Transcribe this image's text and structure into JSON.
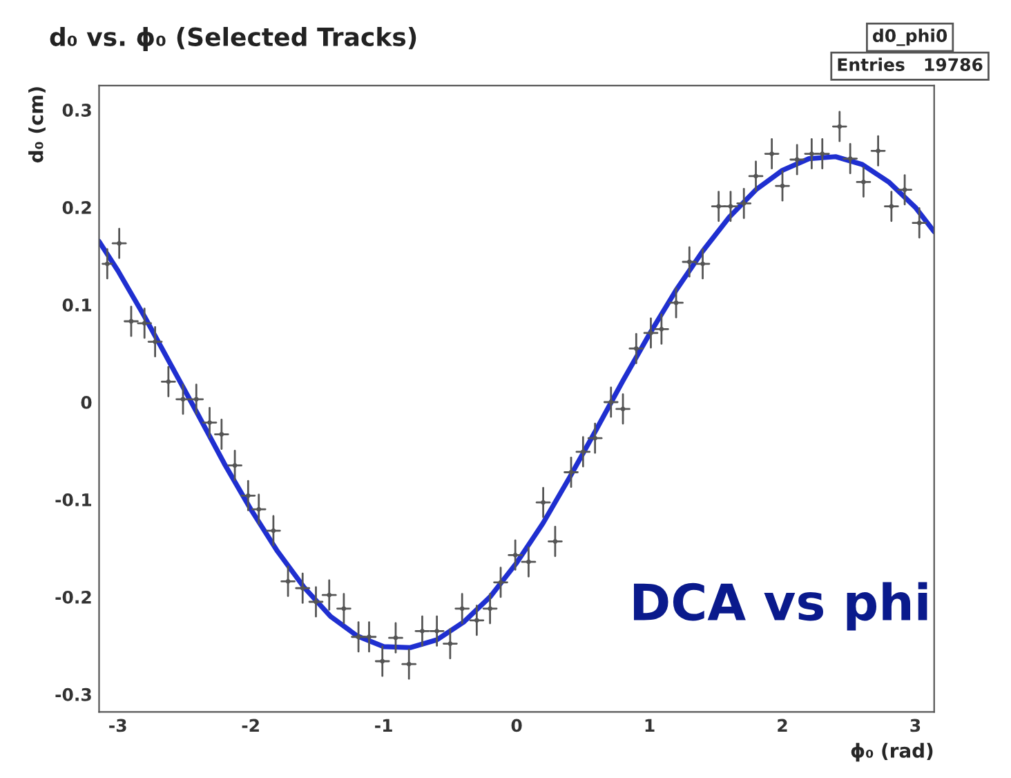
{
  "chart_data": {
    "type": "scatter",
    "title": "d₀ vs. ϕ₀ (Selected Tracks)",
    "xlabel": "ϕ₀ (rad)",
    "ylabel": "d₀ (cm)",
    "annotations": [
      "d0_phi0",
      "Entries   19786",
      "DCA vs phi"
    ],
    "xlim": [
      -3.1416,
      3.1416
    ],
    "xticks": [
      -3,
      -2,
      -1,
      0,
      1,
      2,
      3
    ],
    "ylim": [
      -0.318,
      0.325
    ],
    "yticks": [
      -0.3,
      -0.2,
      -0.1,
      0,
      0.1,
      0.2,
      0.3
    ],
    "grid": false,
    "legend": false,
    "series": [
      {
        "color": "#555555",
        "x": [
          -3.08,
          -2.99,
          -2.9,
          -2.8,
          -2.72,
          -2.62,
          -2.51,
          -2.41,
          -2.31,
          -2.22,
          -2.12,
          -2.02,
          -1.94,
          -1.83,
          -1.72,
          -1.61,
          -1.51,
          -1.41,
          -1.3,
          -1.19,
          -1.11,
          -1.01,
          -0.91,
          -0.81,
          -0.71,
          -0.6,
          -0.5,
          -0.41,
          -0.3,
          -0.2,
          -0.12,
          -0.01,
          0.09,
          0.2,
          0.29,
          0.41,
          0.5,
          0.59,
          0.71,
          0.8,
          0.9,
          1.01,
          1.09,
          1.2,
          1.3,
          1.4,
          1.52,
          1.61,
          1.71,
          1.8,
          1.92,
          2.0,
          2.11,
          2.22,
          2.3,
          2.43,
          2.51,
          2.61,
          2.72,
          2.82,
          2.92,
          3.03
        ],
        "values": [
          0.142,
          0.163,
          0.083,
          0.081,
          0.062,
          0.021,
          0.003,
          0.003,
          -0.021,
          -0.033,
          -0.065,
          -0.096,
          -0.11,
          -0.132,
          -0.184,
          -0.191,
          -0.205,
          -0.198,
          -0.212,
          -0.241,
          -0.241,
          -0.266,
          -0.242,
          -0.269,
          -0.235,
          -0.235,
          -0.248,
          -0.212,
          -0.224,
          -0.212,
          -0.185,
          -0.157,
          -0.164,
          -0.103,
          -0.143,
          -0.072,
          -0.051,
          -0.037,
          0.0,
          -0.007,
          0.055,
          0.071,
          0.075,
          0.102,
          0.144,
          0.142,
          0.201,
          0.201,
          0.204,
          0.232,
          0.255,
          0.222,
          0.249,
          0.255,
          0.255,
          0.283,
          0.25,
          0.226,
          0.258,
          0.201,
          0.218,
          0.184
        ],
        "errors": [
          0.015,
          0.015,
          0.015,
          0.015,
          0.015,
          0.015,
          0.015,
          0.015,
          0.015,
          0.015,
          0.015,
          0.015,
          0.015,
          0.015,
          0.015,
          0.015,
          0.015,
          0.015,
          0.015,
          0.015,
          0.015,
          0.015,
          0.015,
          0.015,
          0.015,
          0.015,
          0.015,
          0.015,
          0.015,
          0.015,
          0.015,
          0.015,
          0.015,
          0.015,
          0.015,
          0.015,
          0.015,
          0.015,
          0.015,
          0.015,
          0.015,
          0.015,
          0.015,
          0.015,
          0.015,
          0.015,
          0.015,
          0.015,
          0.015,
          0.015,
          0.015,
          0.015,
          0.015,
          0.015,
          0.015,
          0.015,
          0.015,
          0.015,
          0.015,
          0.015,
          0.015,
          0.015
        ],
        "xerrors": [
          0.035,
          0.049,
          0.049,
          0.049,
          0.049,
          0.049,
          0.049,
          0.049,
          0.049,
          0.049,
          0.049,
          0.049,
          0.049,
          0.049,
          0.049,
          0.049,
          0.049,
          0.049,
          0.049,
          0.049,
          0.049,
          0.049,
          0.049,
          0.049,
          0.049,
          0.049,
          0.049,
          0.049,
          0.049,
          0.049,
          0.049,
          0.049,
          0.049,
          0.049,
          0.049,
          0.049,
          0.049,
          0.049,
          0.049,
          0.049,
          0.049,
          0.049,
          0.049,
          0.049,
          0.049,
          0.049,
          0.049,
          0.049,
          0.049,
          0.049,
          0.049,
          0.049,
          0.049,
          0.049,
          0.049,
          0.049,
          0.049,
          0.049,
          0.049,
          0.049,
          0.049,
          0.049
        ]
      },
      {
        "type": "line",
        "color": "#1f2fd0",
        "line_style": "solid",
        "x": [
          -3.1416,
          -3.0,
          -2.8,
          -2.6,
          -2.4,
          -2.2,
          -2.0,
          -1.8,
          -1.6,
          -1.4,
          -1.2,
          -1.0,
          -0.8,
          -0.6,
          -0.4,
          -0.2,
          0.0,
          0.2,
          0.4,
          0.6,
          0.8,
          1.0,
          1.2,
          1.4,
          1.6,
          1.8,
          2.0,
          2.2,
          2.4,
          2.6,
          2.8,
          3.0,
          3.1416
        ],
        "values": [
          0.165,
          0.135,
          0.088,
          0.038,
          -0.012,
          -0.063,
          -0.11,
          -0.153,
          -0.19,
          -0.22,
          -0.24,
          -0.251,
          -0.252,
          -0.244,
          -0.226,
          -0.2,
          -0.165,
          -0.124,
          -0.077,
          -0.028,
          0.022,
          0.07,
          0.115,
          0.155,
          0.19,
          0.218,
          0.238,
          0.25,
          0.252,
          0.244,
          0.226,
          0.2,
          0.175
        ]
      }
    ]
  }
}
